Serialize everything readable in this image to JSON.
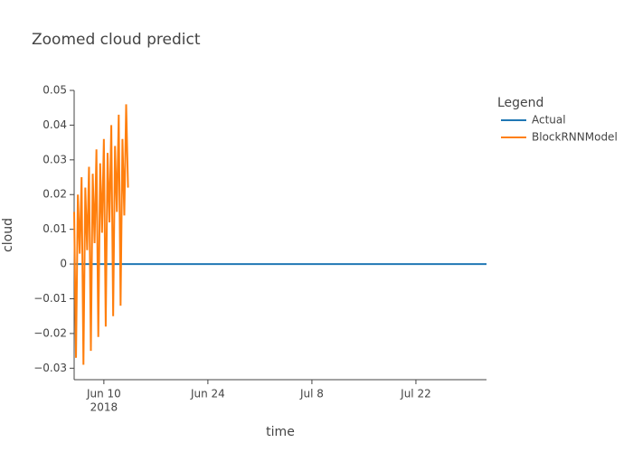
{
  "chart_data": {
    "type": "line",
    "title": "Zoomed cloud predict",
    "x_label": "time",
    "y_label": "cloud",
    "legend_title": "Legend",
    "legend_position": "right",
    "grid": false,
    "xlim": [
      "2018-06-06 00:00",
      "2018-07-31 12:00"
    ],
    "xticks": [
      {
        "value": "2018-06-10",
        "label": [
          "Jun 10",
          "2018"
        ]
      },
      {
        "value": "2018-06-24",
        "label": [
          "Jun 24"
        ]
      },
      {
        "value": "2018-07-08",
        "label": [
          "Jul 8"
        ]
      },
      {
        "value": "2018-07-22",
        "label": [
          "Jul 22"
        ]
      }
    ],
    "ylim": [
      -0.0333,
      0.05
    ],
    "yticks": [
      {
        "value": -0.03,
        "label": "−0.03"
      },
      {
        "value": -0.02,
        "label": "−0.02"
      },
      {
        "value": -0.01,
        "label": "−0.01"
      },
      0,
      0.01,
      0.02,
      0.03,
      0.04,
      0.05
    ],
    "series": [
      {
        "name": "Actual",
        "color": "#1f77b4",
        "x": [
          "2018-06-06 00:00",
          "2018-07-31 12:00"
        ],
        "values": [
          0,
          0
        ]
      },
      {
        "name": "BlockRNNModel",
        "color": "#ff7f0e",
        "x": [
          "2018-06-06 00:00",
          "2018-06-06 06:00",
          "2018-06-06 12:00",
          "2018-06-06 18:00",
          "2018-06-07 00:00",
          "2018-06-07 06:00",
          "2018-06-07 12:00",
          "2018-06-07 18:00",
          "2018-06-08 00:00",
          "2018-06-08 06:00",
          "2018-06-08 12:00",
          "2018-06-08 18:00",
          "2018-06-09 00:00",
          "2018-06-09 06:00",
          "2018-06-09 12:00",
          "2018-06-09 18:00",
          "2018-06-10 00:00",
          "2018-06-10 06:00",
          "2018-06-10 12:00",
          "2018-06-10 18:00",
          "2018-06-11 00:00",
          "2018-06-11 06:00",
          "2018-06-11 12:00",
          "2018-06-11 18:00",
          "2018-06-12 00:00",
          "2018-06-12 06:00",
          "2018-06-12 12:00",
          "2018-06-12 18:00",
          "2018-06-13 00:00",
          "2018-06-13 06:00"
        ],
        "values": [
          0.015,
          -0.027,
          0.02,
          0.003,
          0.025,
          -0.029,
          0.022,
          0.004,
          0.028,
          -0.025,
          0.026,
          0.006,
          0.033,
          -0.021,
          0.029,
          0.009,
          0.036,
          -0.018,
          0.032,
          0.012,
          0.04,
          -0.015,
          0.034,
          0.015,
          0.043,
          -0.012,
          0.036,
          0.014,
          0.046,
          0.022
        ]
      }
    ]
  }
}
